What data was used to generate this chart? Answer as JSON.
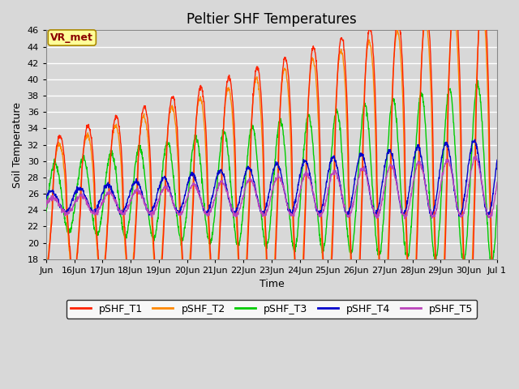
{
  "title": "Peltier SHF Temperatures",
  "xlabel": "Time",
  "ylabel": "Soil Temperature",
  "ylim": [
    18,
    46
  ],
  "yticks": [
    18,
    20,
    22,
    24,
    26,
    28,
    30,
    32,
    34,
    36,
    38,
    40,
    42,
    44,
    46
  ],
  "background_color": "#d8d8d8",
  "plot_bg_color": "#d8d8d8",
  "grid_color": "white",
  "line_colors": {
    "pSHF_T1": "#ff2200",
    "pSHF_T2": "#ff8800",
    "pSHF_T3": "#00cc00",
    "pSHF_T4": "#0000cc",
    "pSHF_T5": "#bb44bb"
  },
  "legend_labels": [
    "pSHF_T1",
    "pSHF_T2",
    "pSHF_T3",
    "pSHF_T4",
    "pSHF_T5"
  ],
  "annotation_text": "VR_met",
  "annotation_color": "#8b0000",
  "annotation_bg": "#ffff99",
  "n_days": 16,
  "n_points": 1600,
  "title_fontsize": 12,
  "axis_fontsize": 9,
  "tick_fontsize": 8,
  "line_width": 1.0
}
